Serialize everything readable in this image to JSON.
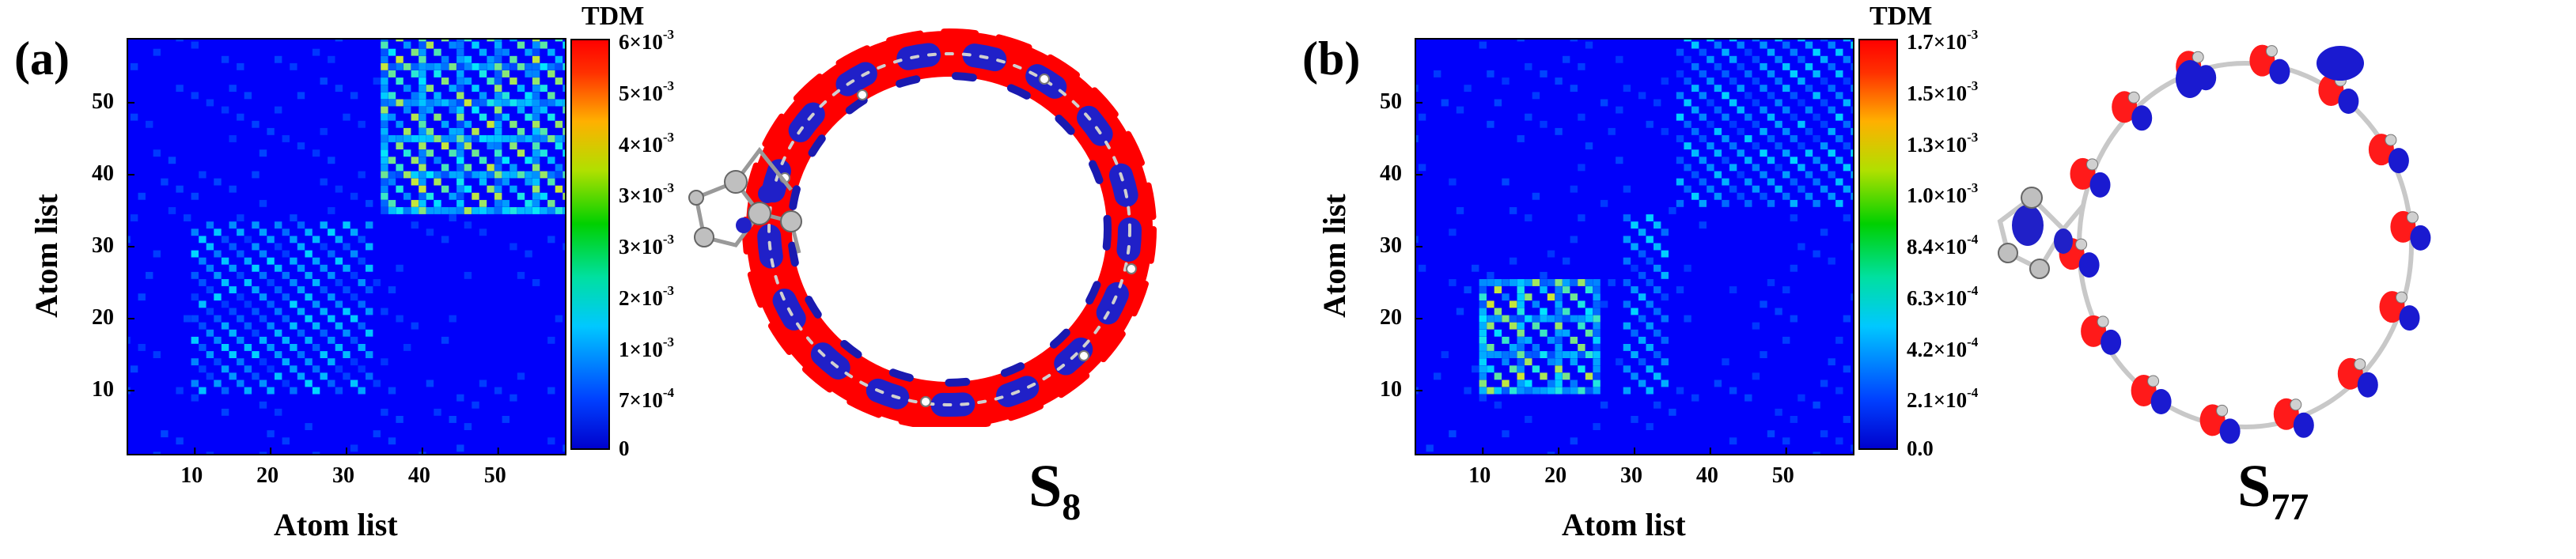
{
  "panels": [
    {
      "label": "(a)",
      "x_title": "Atom list",
      "y_title": "Atom list",
      "colorbar_title": "TDM",
      "state": {
        "base": "S",
        "sub": "8"
      },
      "colorbar_ticks": [
        {
          "mant": "6×10",
          "exp": "-3",
          "frac": 1.0
        },
        {
          "mant": "5×10",
          "exp": "-3",
          "frac": 0.875
        },
        {
          "mant": "4×10",
          "exp": "-3",
          "frac": 0.75
        },
        {
          "mant": "3×10",
          "exp": "-3",
          "frac": 0.625
        },
        {
          "mant": "3×10",
          "exp": "-3",
          "frac": 0.5
        },
        {
          "mant": "2×10",
          "exp": "-3",
          "frac": 0.375
        },
        {
          "mant": "1×10",
          "exp": "-3",
          "frac": 0.25
        },
        {
          "mant": "7×10",
          "exp": "-4",
          "frac": 0.125
        },
        {
          "mant": "0",
          "exp": "",
          "frac": 0.0
        }
      ]
    },
    {
      "label": "(b)",
      "x_title": "Atom list",
      "y_title": "Atom list",
      "colorbar_title": "TDM",
      "state": {
        "base": "S",
        "sub": "77"
      },
      "colorbar_ticks": [
        {
          "mant": "1.7×10",
          "exp": "-3",
          "frac": 1.0
        },
        {
          "mant": "1.5×10",
          "exp": "-3",
          "frac": 0.875
        },
        {
          "mant": "1.3×10",
          "exp": "-3",
          "frac": 0.75
        },
        {
          "mant": "1.0×10",
          "exp": "-3",
          "frac": 0.625
        },
        {
          "mant": "8.4×10",
          "exp": "-4",
          "frac": 0.5
        },
        {
          "mant": "6.3×10",
          "exp": "-4",
          "frac": 0.375
        },
        {
          "mant": "4.2×10",
          "exp": "-4",
          "frac": 0.25
        },
        {
          "mant": "2.1×10",
          "exp": "-4",
          "frac": 0.125
        },
        {
          "mant": "0.0",
          "exp": "",
          "frac": 0.0
        }
      ]
    }
  ],
  "chart_data": [
    {
      "type": "heatmap",
      "title": "",
      "xlabel": "Atom list",
      "ylabel": "Atom list",
      "xlim": [
        1,
        59
      ],
      "ylim": [
        1,
        59
      ],
      "x_ticks": [
        10,
        20,
        30,
        40,
        50
      ],
      "y_ticks": [
        10,
        20,
        30,
        40,
        50
      ],
      "colorbar": {
        "label": "TDM",
        "min": 0,
        "max": 0.006
      },
      "grid": false,
      "hotspots": [
        {
          "x_range": [
            35,
            59
          ],
          "y_range": [
            35,
            59
          ],
          "level": "high",
          "note": "upper-right block"
        },
        {
          "x_range": [
            10,
            33
          ],
          "y_range": [
            10,
            33
          ],
          "level": "moderate",
          "note": "lower-left block"
        }
      ]
    },
    {
      "type": "heatmap",
      "title": "",
      "xlabel": "Atom list",
      "ylabel": "Atom list",
      "xlim": [
        1,
        59
      ],
      "ylim": [
        1,
        59
      ],
      "x_ticks": [
        10,
        20,
        30,
        40,
        50
      ],
      "y_ticks": [
        10,
        20,
        30,
        40,
        50
      ],
      "colorbar": {
        "label": "TDM",
        "min": 0,
        "max": 0.0017
      },
      "grid": false,
      "hotspots": [
        {
          "x_range": [
            10,
            25
          ],
          "y_range": [
            10,
            25
          ],
          "level": "high"
        },
        {
          "x_range": [
            29,
            34
          ],
          "y_range": [
            10,
            34
          ],
          "level": "moderate"
        },
        {
          "x_range": [
            36,
            59
          ],
          "y_range": [
            36,
            59
          ],
          "level": "moderate"
        }
      ]
    }
  ]
}
